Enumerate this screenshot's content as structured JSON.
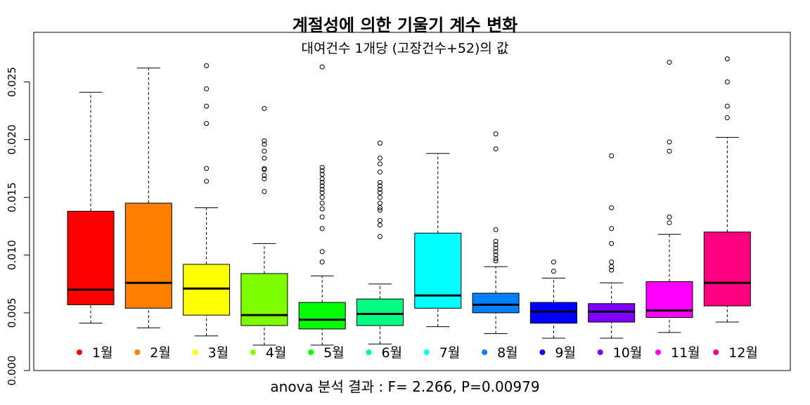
{
  "chart_data": {
    "type": "boxplot",
    "title": "계절성에 의한 기울기 계수 변화",
    "subtitle": "대여건수 1개당 (고장건수+52)의 값",
    "xlabel": "anova 분석 결과 : F= 2.266, P=0.00979",
    "ylabel": "",
    "ylim": [
      0.0,
      0.027
    ],
    "yticks": [
      "0.000",
      "0.005",
      "0.010",
      "0.015",
      "0.020",
      "0.025"
    ],
    "legend_position": "bottom",
    "series": [
      {
        "name": "1월",
        "color": "#ff0000",
        "whisker_low": 0.0041,
        "q1": 0.0057,
        "median": 0.007,
        "q3": 0.0138,
        "whisker_high": 0.0241,
        "outliers": []
      },
      {
        "name": "2월",
        "color": "#ff8000",
        "whisker_low": 0.0037,
        "q1": 0.0054,
        "median": 0.0076,
        "q3": 0.0145,
        "whisker_high": 0.0262,
        "outliers": []
      },
      {
        "name": "3월",
        "color": "#ffff00",
        "whisker_low": 0.003,
        "q1": 0.0048,
        "median": 0.0071,
        "q3": 0.0092,
        "whisker_high": 0.0141,
        "outliers": [
          0.0164,
          0.0175,
          0.0214,
          0.0229,
          0.0244,
          0.0264
        ]
      },
      {
        "name": "4월",
        "color": "#80ff00",
        "whisker_low": 0.0022,
        "q1": 0.0039,
        "median": 0.0048,
        "q3": 0.0084,
        "whisker_high": 0.011,
        "outliers": [
          0.0155,
          0.0166,
          0.0169,
          0.0174,
          0.0175,
          0.0184,
          0.019,
          0.0196,
          0.0199,
          0.0227
        ]
      },
      {
        "name": "5월",
        "color": "#00ff00",
        "whisker_low": 0.0022,
        "q1": 0.0036,
        "median": 0.0044,
        "q3": 0.0059,
        "whisker_high": 0.0082,
        "outliers": [
          0.0094,
          0.0103,
          0.0123,
          0.0133,
          0.014,
          0.0145,
          0.015,
          0.0154,
          0.0157,
          0.016,
          0.0163,
          0.0166,
          0.017,
          0.0173,
          0.0176,
          0.0263
        ]
      },
      {
        "name": "6월",
        "color": "#00ff80",
        "whisker_low": 0.0023,
        "q1": 0.0039,
        "median": 0.0049,
        "q3": 0.0062,
        "whisker_high": 0.0075,
        "outliers": [
          0.0116,
          0.0126,
          0.013,
          0.0139,
          0.0141,
          0.0145,
          0.015,
          0.0154,
          0.0157,
          0.016,
          0.0163,
          0.0172,
          0.0179,
          0.0184,
          0.0197
        ]
      },
      {
        "name": "7월",
        "color": "#00ffff",
        "whisker_low": 0.0038,
        "q1": 0.0054,
        "median": 0.0065,
        "q3": 0.0119,
        "whisker_high": 0.0188,
        "outliers": []
      },
      {
        "name": "8월",
        "color": "#0080ff",
        "whisker_low": 0.0032,
        "q1": 0.005,
        "median": 0.0057,
        "q3": 0.0067,
        "whisker_high": 0.009,
        "outliers": [
          0.0095,
          0.0097,
          0.01,
          0.0103,
          0.0106,
          0.0109,
          0.0112,
          0.0122,
          0.0192,
          0.0205
        ]
      },
      {
        "name": "9월",
        "color": "#0000ff",
        "whisker_low": 0.0028,
        "q1": 0.0041,
        "median": 0.0051,
        "q3": 0.0059,
        "whisker_high": 0.008,
        "outliers": [
          0.0086,
          0.0094
        ]
      },
      {
        "name": "10월",
        "color": "#8000ff",
        "whisker_low": 0.0028,
        "q1": 0.0042,
        "median": 0.0051,
        "q3": 0.0058,
        "whisker_high": 0.0076,
        "outliers": [
          0.0087,
          0.009,
          0.0094,
          0.011,
          0.0123,
          0.0141,
          0.0186
        ]
      },
      {
        "name": "11월",
        "color": "#ff00ff",
        "whisker_low": 0.0033,
        "q1": 0.0046,
        "median": 0.0052,
        "q3": 0.0077,
        "whisker_high": 0.0118,
        "outliers": [
          0.0128,
          0.0133,
          0.019,
          0.0198,
          0.0267
        ]
      },
      {
        "name": "12월",
        "color": "#ff0080",
        "whisker_low": 0.0042,
        "q1": 0.0056,
        "median": 0.0076,
        "q3": 0.012,
        "whisker_high": 0.0202,
        "outliers": [
          0.0219,
          0.0229,
          0.025,
          0.027
        ]
      }
    ]
  }
}
